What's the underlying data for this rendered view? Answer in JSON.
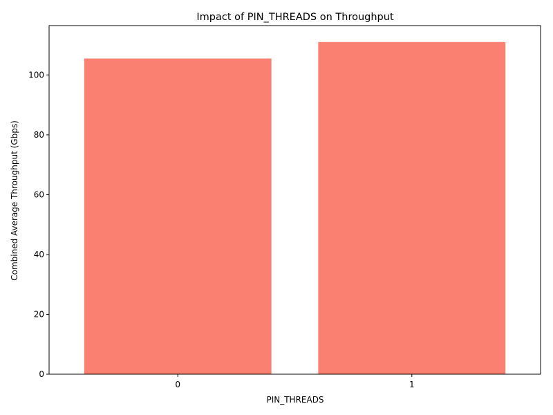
{
  "chart_data": {
    "type": "bar",
    "title": "Impact of PIN_THREADS on Throughput",
    "xlabel": "PIN_THREADS",
    "ylabel": "Combined Average Throughput (Gbps)",
    "categories": [
      "0",
      "1"
    ],
    "values": [
      105.5,
      111.0
    ],
    "ylim": [
      0,
      116.5
    ],
    "yticks": [
      0,
      20,
      40,
      60,
      80,
      100
    ],
    "grid": false,
    "bar_color": "#fa8072"
  }
}
